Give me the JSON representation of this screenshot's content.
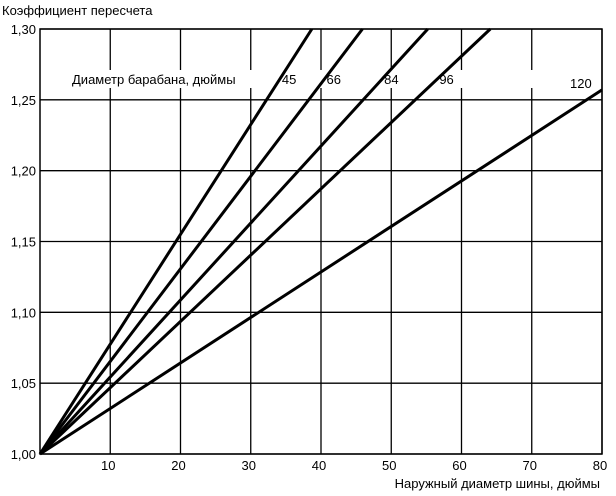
{
  "chart_data": {
    "type": "line",
    "ylabel": "Коэффициент пересчета",
    "xlabel": "Наружный диаметр шины, дюймы",
    "legend_title": "Диаметр барабана, дюймы",
    "xlim": [
      0,
      80
    ],
    "ylim": [
      1.0,
      1.3
    ],
    "x_ticks": [
      {
        "value": 10,
        "label": "10"
      },
      {
        "value": 20,
        "label": "20"
      },
      {
        "value": 30,
        "label": "30"
      },
      {
        "value": 40,
        "label": "40"
      },
      {
        "value": 50,
        "label": "50"
      },
      {
        "value": 60,
        "label": "60"
      },
      {
        "value": 70,
        "label": "70"
      },
      {
        "value": 80,
        "label": "80"
      }
    ],
    "y_ticks": [
      {
        "value": 1.0,
        "label": "1,00"
      },
      {
        "value": 1.05,
        "label": "1,05"
      },
      {
        "value": 1.1,
        "label": "1,10"
      },
      {
        "value": 1.15,
        "label": "1,15"
      },
      {
        "value": 1.2,
        "label": "1,20"
      },
      {
        "value": 1.25,
        "label": "1,25"
      },
      {
        "value": 1.3,
        "label": "1,30"
      }
    ],
    "grid": true,
    "series": [
      {
        "name": "45",
        "x": [
          0,
          38.7
        ],
        "y": [
          1.0,
          1.3
        ]
      },
      {
        "name": "66",
        "x": [
          0,
          45.9
        ],
        "y": [
          1.0,
          1.3
        ]
      },
      {
        "name": "84",
        "x": [
          0,
          55.2
        ],
        "y": [
          1.0,
          1.3
        ]
      },
      {
        "name": "96",
        "x": [
          0,
          64.1
        ],
        "y": [
          1.0,
          1.3
        ]
      },
      {
        "name": "120",
        "x": [
          0,
          80
        ],
        "y": [
          1.0,
          1.257
        ]
      }
    ]
  }
}
